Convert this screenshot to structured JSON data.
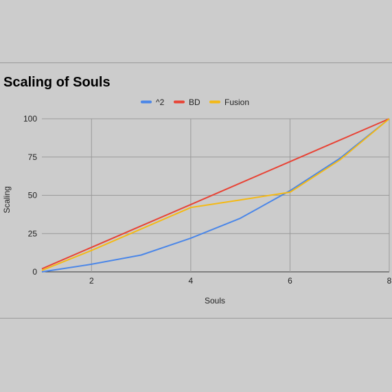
{
  "chart_data": {
    "type": "line",
    "title": "Scaling of Souls",
    "xlabel": "Souls",
    "ylabel": "Scaling",
    "xlim": [
      1,
      8
    ],
    "ylim": [
      0,
      100
    ],
    "x_ticks": [
      2,
      4,
      6,
      8
    ],
    "y_ticks": [
      0,
      25,
      50,
      75,
      100
    ],
    "grid": true,
    "legend_position": "top",
    "x": [
      1,
      2,
      3,
      4,
      5,
      6,
      7,
      8
    ],
    "series": [
      {
        "name": "^2",
        "color": "#4a86e8",
        "values": [
          0,
          5,
          11,
          22,
          35,
          53,
          74,
          100
        ]
      },
      {
        "name": "BD",
        "color": "#e84335",
        "values": [
          2,
          16,
          30,
          44,
          58,
          72,
          86,
          100
        ]
      },
      {
        "name": "Fusion",
        "color": "#f4b915",
        "values": [
          1,
          14,
          28,
          42,
          47,
          52,
          73,
          100
        ]
      }
    ]
  }
}
